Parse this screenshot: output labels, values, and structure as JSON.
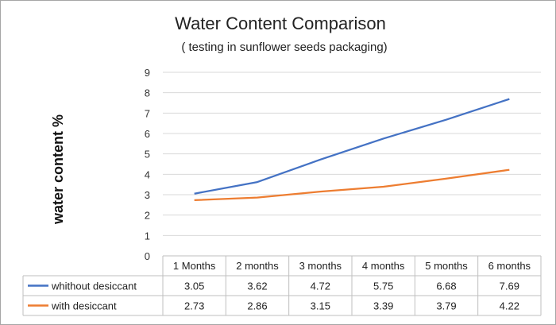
{
  "chart_data": {
    "type": "line",
    "title": "Water Content Comparison",
    "subtitle": "( testing in sunflower seeds packaging)",
    "ylabel": "water content  %",
    "xlabel": "",
    "ylim": [
      0,
      9
    ],
    "yticks": [
      "0",
      "1",
      "2",
      "3",
      "4",
      "5",
      "6",
      "7",
      "8",
      "9"
    ],
    "categories": [
      "1 Months",
      "2 months",
      "3 months",
      "4 months",
      "5 months",
      "6 months"
    ],
    "grid": true,
    "legend": "data-table",
    "series": [
      {
        "name": "whithout desiccant",
        "color": "#4472c4",
        "values": [
          3.05,
          3.62,
          4.72,
          5.75,
          6.68,
          7.69
        ],
        "labels": [
          "3.05",
          "3.62",
          "4.72",
          "5.75",
          "6.68",
          "7.69"
        ]
      },
      {
        "name": "with desiccant",
        "color": "#ed7d31",
        "values": [
          2.73,
          2.86,
          3.15,
          3.39,
          3.79,
          4.22
        ],
        "labels": [
          "2.73",
          "2.86",
          "3.15",
          "3.39",
          "3.79",
          "4.22"
        ]
      }
    ]
  }
}
